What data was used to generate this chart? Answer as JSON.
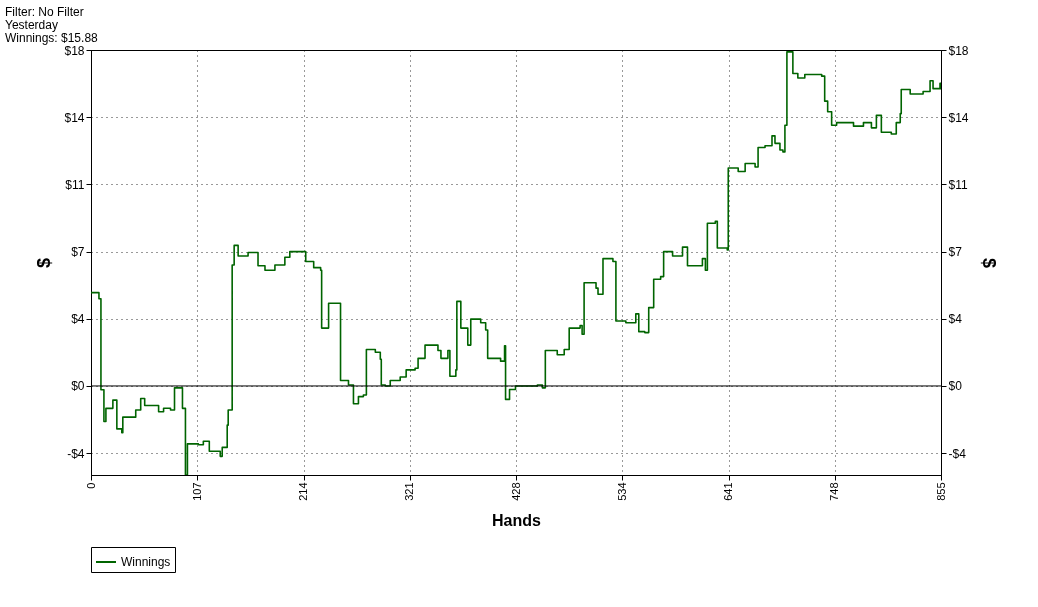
{
  "chart_data": {
    "type": "step",
    "xlabel": "Hands",
    "ylabel": "$",
    "y2label": "$",
    "annotations": [
      "Filter: No Filter",
      "Yesterday",
      "Winnings: $15.88"
    ],
    "xlim": [
      0,
      855
    ],
    "xticks": [
      0,
      {
        "value": 106.875,
        "label": "107"
      },
      {
        "value": 213.75,
        "label": "214"
      },
      {
        "value": 320.625,
        "label": "321"
      },
      {
        "value": 427.5,
        "label": "428"
      },
      {
        "value": 534.375,
        "label": "534"
      },
      {
        "value": 641.25,
        "label": "641"
      },
      {
        "value": 748.125,
        "label": "748"
      },
      855
    ],
    "ylim": [
      -4.77,
      18.0
    ],
    "yticks": [
      {
        "value": -3.6,
        "label": "-$4"
      },
      {
        "value": 0,
        "label": "$0"
      },
      {
        "value": 3.6,
        "label": "$4"
      },
      {
        "value": 7.2,
        "label": "$7"
      },
      {
        "value": 10.8,
        "label": "$11"
      },
      {
        "value": 14.4,
        "label": "$14"
      },
      {
        "value": 18.0,
        "label": "$18"
      }
    ],
    "y2lim": [
      -4.77,
      18.0
    ],
    "y2ticks": [
      {
        "value": -3.6,
        "label": "-$4"
      },
      {
        "value": 0,
        "label": "$0"
      },
      {
        "value": 3.6,
        "label": "$4"
      },
      {
        "value": 7.2,
        "label": "$7"
      },
      {
        "value": 10.8,
        "label": "$11"
      },
      {
        "value": 14.4,
        "label": "$14"
      },
      {
        "value": 18.0,
        "label": "$18"
      }
    ],
    "grid": true,
    "legend": "bottom left",
    "line_style": "solid",
    "ref_lines": [
      {
        "axis": "y",
        "value": 0,
        "label": null,
        "color": "#000000"
      }
    ],
    "series": [
      {
        "name": "Winnings",
        "color": "#006400",
        "x": [
          0,
          8,
          10,
          13,
          15,
          22,
          26,
          31,
          32,
          45,
          50,
          54,
          68,
          73,
          80,
          84,
          92,
          95,
          97,
          108,
          113,
          119,
          130,
          132,
          137,
          138,
          142,
          144,
          148,
          158,
          168,
          175,
          185,
          195,
          200,
          216,
          224,
          231,
          232,
          239,
          251,
          259,
          264,
          269,
          274,
          277,
          286,
          291,
          292,
          296,
          301,
          311,
          317,
          326,
          329,
          336,
          349,
          352,
          359,
          361,
          367,
          368,
          372,
          379,
          382,
          392,
          397,
          399,
          412,
          416,
          417,
          421,
          427,
          449,
          454,
          457,
          469,
          476,
          481,
          492,
          494,
          496,
          508,
          510,
          515,
          525,
          528,
          538,
          548,
          551,
          557,
          561,
          566,
          573,
          576,
          585,
          595,
          600,
          615,
          618,
          620,
          628,
          630,
          640,
          641,
          651,
          658,
          668,
          671,
          678,
          685,
          688,
          693,
          696,
          698,
          700,
          706,
          711,
          718,
          735,
          738,
          741,
          745,
          750,
          767,
          777,
          785,
          790,
          795,
          805,
          810,
          814,
          815,
          824,
          837,
          844,
          847,
          854,
          855
        ],
        "values": [
          5.0,
          4.67,
          -0.2,
          -1.9,
          -1.2,
          -0.76,
          -2.3,
          -2.5,
          -1.67,
          -1.29,
          -0.67,
          -1.05,
          -1.38,
          -1.19,
          -1.29,
          -0.1,
          -1.2,
          -4.77,
          -3.1,
          -3.15,
          -2.96,
          -3.5,
          -3.77,
          -3.29,
          -2.1,
          -1.29,
          6.48,
          7.53,
          6.96,
          7.15,
          6.44,
          6.2,
          6.48,
          6.9,
          7.2,
          6.67,
          6.34,
          6.2,
          3.1,
          4.43,
          0.29,
          0.05,
          -0.95,
          -0.57,
          -0.48,
          1.95,
          1.81,
          1.43,
          0.05,
          0,
          0.29,
          0.48,
          0.86,
          0.95,
          1.48,
          2.19,
          1.9,
          1.48,
          1.9,
          0.52,
          0.86,
          4.53,
          3.1,
          2.19,
          3.58,
          3.39,
          3.0,
          1.48,
          1.33,
          2.15,
          -0.72,
          -0.19,
          0,
          0.05,
          -0.1,
          1.9,
          1.67,
          1.95,
          3.1,
          3.24,
          2.77,
          5.53,
          5.24,
          4.91,
          6.82,
          6.67,
          3.48,
          3.39,
          3.86,
          2.91,
          2.86,
          4.2,
          5.72,
          5.86,
          7.2,
          6.96,
          7.44,
          6.44,
          6.82,
          6.2,
          8.72,
          8.82,
          7.39,
          7.29,
          11.68,
          11.49,
          11.92,
          11.73,
          12.78,
          12.87,
          13.4,
          13.0,
          12.64,
          12.54,
          13.97,
          17.9,
          16.74,
          16.5,
          16.69,
          16.6,
          15.26,
          14.69,
          13.97,
          14.11,
          13.92,
          14.11,
          13.83,
          14.5,
          13.59,
          13.5,
          14.11,
          14.59,
          15.88,
          15.64,
          15.78,
          16.35,
          15.93,
          16.21,
          15.88
        ]
      }
    ]
  }
}
